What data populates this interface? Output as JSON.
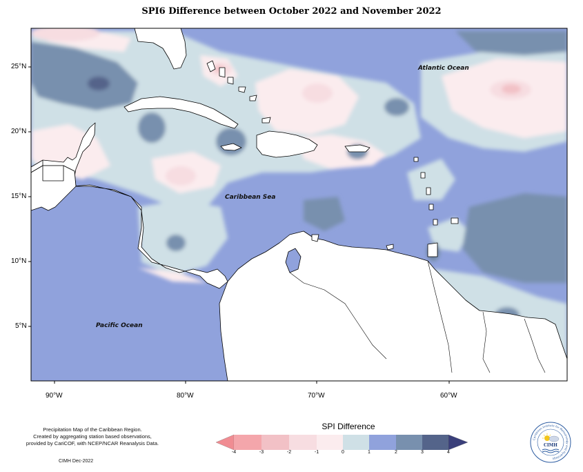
{
  "title": "SPI6 Difference between October 2022 and November 2022",
  "axes": {
    "latitudes": [
      "25°N",
      "20°N",
      "15°N",
      "10°N",
      "5°N"
    ],
    "longitudes": [
      "90°W",
      "80°W",
      "70°W",
      "60°W"
    ]
  },
  "labels": {
    "atlantic": "Atlantic Ocean",
    "caribbean": "Caribbean Sea",
    "pacific": "Pacific Ocean"
  },
  "legend": {
    "title": "SPI Difference",
    "ticks": [
      "-4",
      "-3",
      "-2",
      "-1",
      "0",
      "1",
      "2",
      "3",
      "4"
    ],
    "colors": [
      "#f4a6ab",
      "#f2c1c6",
      "#f7dde1",
      "#fbecee",
      "#cfe0e6",
      "#90a2dc",
      "#7890ae",
      "#54648a"
    ],
    "low_arrow_color": "#f08c92",
    "high_arrow_color": "#3a3f7a"
  },
  "footer": {
    "line1": "Precipitation Map of the Caribbean Region.",
    "line2": "Created by aggregating station based observations,",
    "line3": "provided by CariCOF, with NCEP/NCAR Reanalysis Data.",
    "credit": "CIMH Dec-2022"
  },
  "logo": {
    "acronym": "CIMH",
    "ring_text": "Caribbean Institute for Meteorology and Hydrology"
  }
}
